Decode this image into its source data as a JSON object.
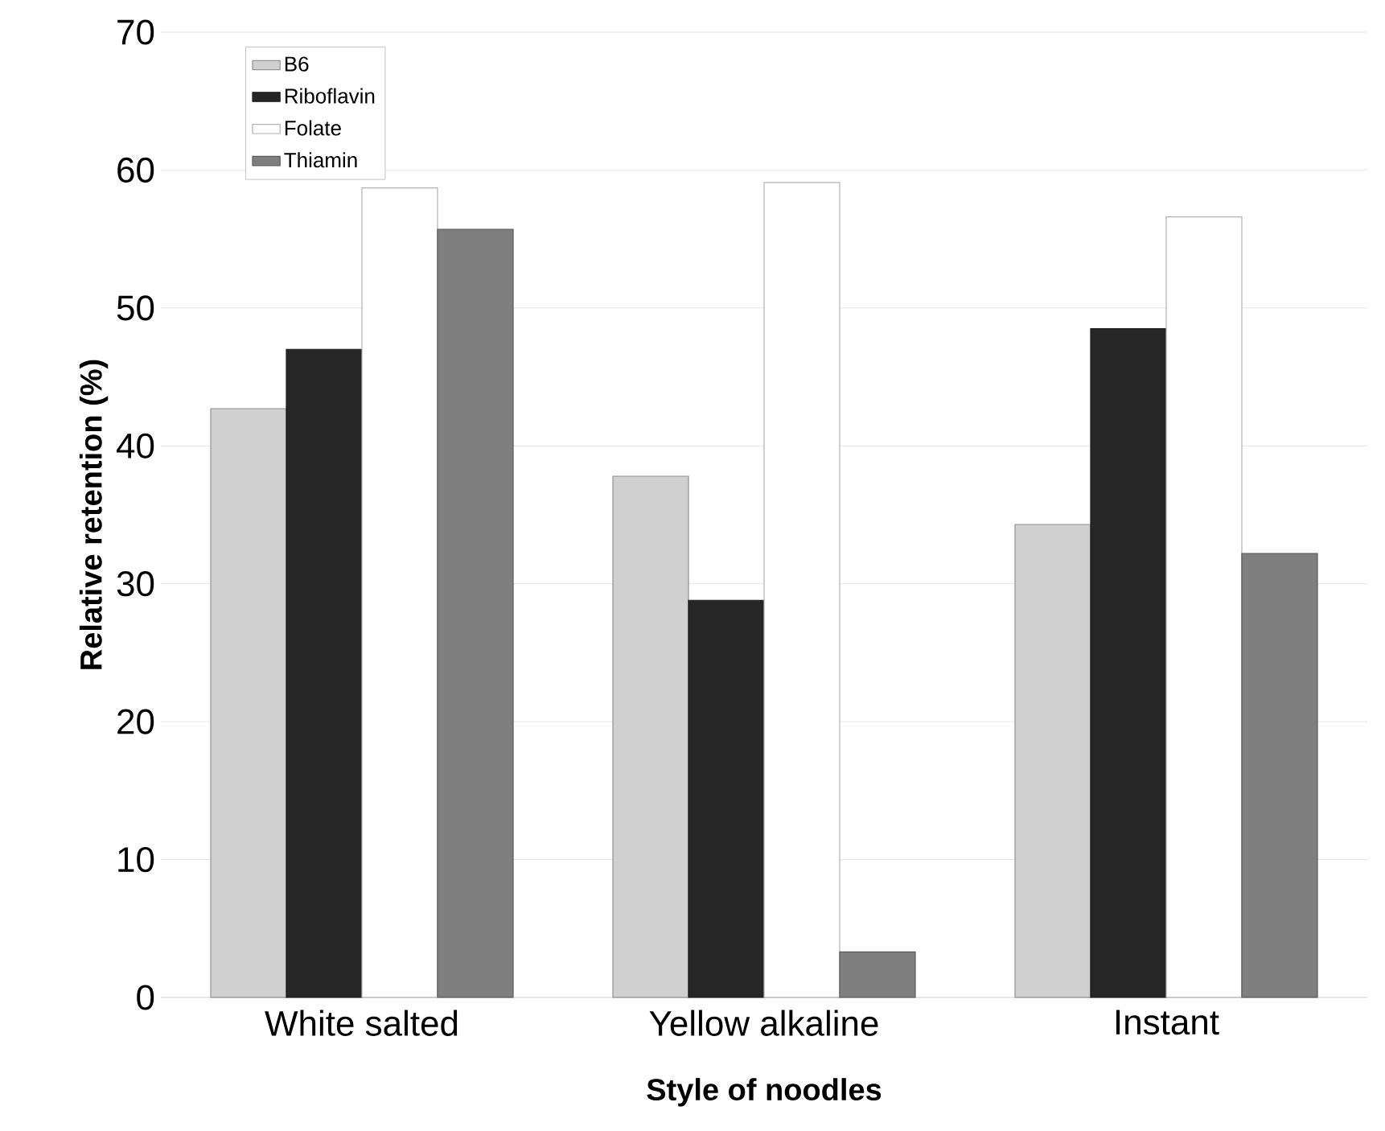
{
  "chart_data": {
    "type": "bar",
    "xlabel": "Style of noodles",
    "ylabel": "Relative retention (%)",
    "categories": [
      "White salted",
      "Yellow alkaline",
      "Instant"
    ],
    "series": [
      {
        "name": "B6",
        "color": "#d0d0d0",
        "values": [
          42.7,
          37.8,
          34.3
        ]
      },
      {
        "name": "Riboflavin",
        "color": "#262626",
        "values": [
          47.0,
          28.8,
          48.5
        ]
      },
      {
        "name": "Folate",
        "color": "#ffffff",
        "values": [
          58.7,
          59.1,
          56.6
        ]
      },
      {
        "name": "Thiamin",
        "color": "#7f7f7f",
        "values": [
          55.7,
          3.3,
          32.2
        ]
      }
    ],
    "ylim": [
      0,
      70
    ],
    "yticks": [
      0,
      10,
      20,
      30,
      40,
      50,
      60,
      70
    ],
    "grid": "y",
    "legend": "top left"
  }
}
